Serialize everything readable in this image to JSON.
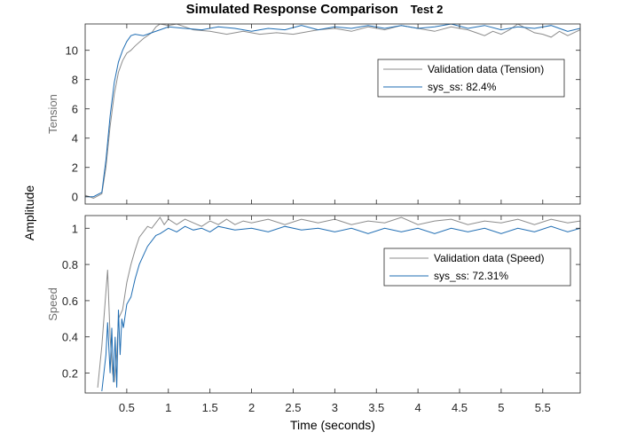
{
  "figure": {
    "title": "Simulated Response Comparison",
    "subtitle": "Test 2",
    "shared_ylabel": "Amplitude",
    "xlabel": "Time (seconds)"
  },
  "colors": {
    "validation": "#8c8c8c",
    "model": "#1f6db3",
    "axes": "#262626",
    "label": "#6e6e6e"
  },
  "chart_data": [
    {
      "type": "line",
      "ylabel": "Tension",
      "xlabel": "",
      "xlim": [
        0,
        5.95
      ],
      "ylim": [
        -0.5,
        11.8
      ],
      "xticks": [
        0.5,
        1,
        1.5,
        2,
        2.5,
        3,
        3.5,
        4,
        4.5,
        5,
        5.5
      ],
      "yticks": [
        0,
        2,
        4,
        6,
        8,
        10
      ],
      "grid": false,
      "legend": "top-right",
      "series": [
        {
          "name": "Validation data (Tension)",
          "x": [
            0,
            0.1,
            0.2,
            0.25,
            0.3,
            0.35,
            0.4,
            0.45,
            0.5,
            0.55,
            0.6,
            0.7,
            0.8,
            0.85,
            0.9,
            1.0,
            1.1,
            1.2,
            1.3,
            1.5,
            1.7,
            1.9,
            2.1,
            2.3,
            2.5,
            2.8,
            3.0,
            3.2,
            3.4,
            3.6,
            3.8,
            4.0,
            4.2,
            4.4,
            4.5,
            4.6,
            4.7,
            4.8,
            4.9,
            5.0,
            5.1,
            5.2,
            5.3,
            5.4,
            5.5,
            5.6,
            5.7,
            5.8,
            5.95
          ],
          "y": [
            0.1,
            -0.1,
            0.2,
            2.0,
            4.8,
            7.0,
            8.5,
            9.3,
            9.8,
            10.0,
            10.3,
            10.8,
            11.2,
            11.6,
            11.8,
            11.7,
            11.8,
            11.6,
            11.4,
            11.3,
            11.1,
            11.3,
            11.1,
            11.2,
            11.1,
            11.4,
            11.5,
            11.3,
            11.6,
            11.4,
            11.7,
            11.5,
            11.3,
            11.6,
            11.5,
            11.4,
            11.2,
            11.0,
            11.3,
            11.1,
            11.4,
            11.8,
            11.5,
            11.2,
            11.1,
            10.9,
            11.3,
            11.0,
            11.4
          ]
        },
        {
          "name": "sys_ss: 82.4%",
          "x": [
            0,
            0.1,
            0.2,
            0.25,
            0.3,
            0.35,
            0.4,
            0.45,
            0.5,
            0.55,
            0.6,
            0.7,
            0.8,
            0.9,
            1.0,
            1.2,
            1.4,
            1.6,
            1.8,
            2.0,
            2.2,
            2.4,
            2.6,
            2.8,
            3.0,
            3.2,
            3.4,
            3.6,
            3.8,
            4.0,
            4.2,
            4.4,
            4.6,
            4.8,
            5.0,
            5.2,
            5.4,
            5.6,
            5.8,
            5.95
          ],
          "y": [
            0.0,
            0.0,
            0.3,
            2.5,
            5.5,
            7.8,
            9.2,
            10.0,
            10.6,
            11.0,
            11.1,
            11.0,
            11.2,
            11.4,
            11.6,
            11.5,
            11.4,
            11.6,
            11.5,
            11.3,
            11.5,
            11.4,
            11.7,
            11.4,
            11.6,
            11.5,
            11.7,
            11.5,
            11.7,
            11.5,
            11.6,
            11.8,
            11.5,
            11.7,
            11.4,
            11.6,
            11.5,
            11.7,
            11.3,
            11.5
          ]
        }
      ]
    },
    {
      "type": "line",
      "ylabel": "Speed",
      "xlabel": "Time (seconds)",
      "xlim": [
        0,
        5.95
      ],
      "ylim": [
        0.09,
        1.07
      ],
      "xticks": [
        0.5,
        1,
        1.5,
        2,
        2.5,
        3,
        3.5,
        4,
        4.5,
        5,
        5.5
      ],
      "xticklabels": [
        "0.5",
        "1",
        "1.5",
        "2",
        "2.5",
        "3",
        "3.5",
        "4",
        "4.5",
        "5",
        "5.5"
      ],
      "yticks": [
        0.2,
        0.4,
        0.6,
        0.8,
        1
      ],
      "yticklabels": [
        "0.2",
        "0.4",
        "0.6",
        "0.8",
        "1"
      ],
      "grid": false,
      "legend": "top-right",
      "series": [
        {
          "name": "Validation data (Speed)",
          "x": [
            0.15,
            0.2,
            0.25,
            0.27,
            0.3,
            0.33,
            0.35,
            0.38,
            0.4,
            0.45,
            0.5,
            0.55,
            0.6,
            0.65,
            0.7,
            0.75,
            0.8,
            0.85,
            0.9,
            0.95,
            1.0,
            1.1,
            1.2,
            1.3,
            1.4,
            1.5,
            1.6,
            1.7,
            1.8,
            1.9,
            2.0,
            2.2,
            2.4,
            2.6,
            2.8,
            3.0,
            3.2,
            3.4,
            3.6,
            3.8,
            4.0,
            4.2,
            4.4,
            4.6,
            4.8,
            5.0,
            5.2,
            5.4,
            5.6,
            5.8,
            5.95
          ],
          "y": [
            0.12,
            0.35,
            0.65,
            0.77,
            0.4,
            0.2,
            0.15,
            0.3,
            0.5,
            0.55,
            0.7,
            0.8,
            0.88,
            0.95,
            0.98,
            1.01,
            1.0,
            1.03,
            1.06,
            1.02,
            1.05,
            1.02,
            1.05,
            1.03,
            1.01,
            1.04,
            1.02,
            1.05,
            1.02,
            1.04,
            1.03,
            1.05,
            1.02,
            1.05,
            1.03,
            1.05,
            1.02,
            1.04,
            1.03,
            1.06,
            1.02,
            1.04,
            1.05,
            1.02,
            1.04,
            1.03,
            1.05,
            1.02,
            1.05,
            1.03,
            1.04
          ]
        },
        {
          "name": "sys_ss: 72.31%",
          "x": [
            0.2,
            0.25,
            0.27,
            0.3,
            0.32,
            0.34,
            0.36,
            0.38,
            0.4,
            0.42,
            0.44,
            0.46,
            0.5,
            0.55,
            0.6,
            0.65,
            0.7,
            0.75,
            0.8,
            0.85,
            0.9,
            1.0,
            1.1,
            1.2,
            1.3,
            1.4,
            1.5,
            1.6,
            1.8,
            2.0,
            2.2,
            2.4,
            2.6,
            2.8,
            3.0,
            3.2,
            3.4,
            3.6,
            3.8,
            4.0,
            4.2,
            4.4,
            4.6,
            4.8,
            5.0,
            5.2,
            5.4,
            5.6,
            5.8,
            5.95
          ],
          "y": [
            0.1,
            0.3,
            0.48,
            0.2,
            0.45,
            0.15,
            0.4,
            0.12,
            0.55,
            0.3,
            0.5,
            0.45,
            0.58,
            0.62,
            0.72,
            0.8,
            0.85,
            0.9,
            0.93,
            0.96,
            0.97,
            1.0,
            0.98,
            1.01,
            0.99,
            1.0,
            0.98,
            1.01,
            0.99,
            1.0,
            0.98,
            1.01,
            0.99,
            1.0,
            0.98,
            1.0,
            0.97,
            1.0,
            0.98,
            1.0,
            0.97,
            1.0,
            0.98,
            1.0,
            0.97,
            1.0,
            0.98,
            1.01,
            0.98,
            1.0
          ]
        }
      ]
    }
  ]
}
